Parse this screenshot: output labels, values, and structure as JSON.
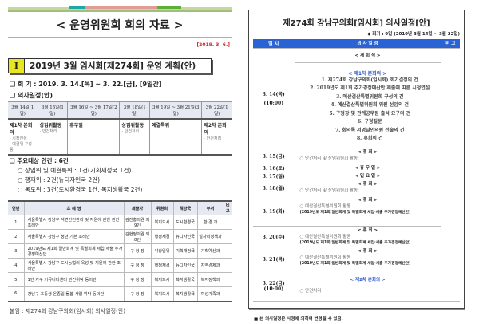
{
  "left": {
    "title": "< 운영위원회 회의 자료 >",
    "date": "[2019. 3. 6.]",
    "section": {
      "num": "I",
      "title": "2019년 3월 임시회[제274회] 운영 계획(안)"
    },
    "session": "❑ 회  기 : 2019. 3. 14.[목] ~ 3. 22.[금], [9일간]",
    "schedule_heading": "❑ 의사일정(안)",
    "schedule": {
      "headers": [
        "3월 14일(1일)",
        "3월 15일(1일)",
        "3월 16일 ~ 3월 17일(2일)",
        "3월 18일(1일)",
        "3월 19일 ~ 3월 21일(3일)",
        "3월 22일(1일)"
      ],
      "events": [
        {
          "title": "제1차 본회의",
          "notes": [
            "- 시정연설",
            "- 예결위 구성 등"
          ]
        },
        {
          "title": "상임위활동",
          "notes": [
            "- 안건처리"
          ]
        },
        {
          "title": "휴무일",
          "notes": []
        },
        {
          "title": "상임위활동",
          "notes": [
            "- 안건처리"
          ]
        },
        {
          "title": "예결특위",
          "notes": []
        },
        {
          "title": "제2차 본회의",
          "notes": [
            "- 안건처리"
          ]
        }
      ]
    },
    "agenda": {
      "main": "❑ 주요대상 안건 : 6건",
      "items": [
        "○ 상임위 및 예결특위 : 1건(기획재정국 1건)",
        "○ 행재위 : 2건(뉴디자인국 2건)",
        "○ 복도위 : 3건(도시환경국 1건, 복지생활국 2건)"
      ]
    },
    "bills": {
      "headers": [
        "연번",
        "조 례 명",
        "제출자",
        "위원회",
        "해당국",
        "부서",
        "비고"
      ],
      "rows": [
        [
          "1",
          "서울특별시 강남구 석면안전관리 및 지원에 관한 관한 조례안",
          "김진홍의원 외 9인",
          "복지도시",
          "도시환경국",
          "환 경 과",
          ""
        ],
        [
          "2",
          "서울특별시 강남구 청년 기본 조례안",
          "김현정의원 외 8인",
          "행정재경",
          "뉴디자인국",
          "일자리정책과",
          ""
        ],
        [
          "3",
          "2019년도 제1회 일반회계 및 특별회계 세입·세출 추가경정예산안",
          "구 청 장",
          "각상임위",
          "기획재정국",
          "기획예산과",
          ""
        ],
        [
          "4",
          "서울특별시 강남구 도시농업의 육성 및 지원에 관한 조례안",
          "구 청 장",
          "행정재경",
          "뉴디자인국",
          "지역경제과",
          ""
        ],
        [
          "5",
          "1인 가구 커뮤니티센터 민간위탁 동의안",
          "구 청 장",
          "복지도시",
          "복지생활국",
          "복지정책과",
          ""
        ],
        [
          "6",
          "강남구 초등생 온종일 돌봄 사업 위탁 동의안",
          "구 청 장",
          "복지도시",
          "복지생활국",
          "여성가족과",
          ""
        ]
      ]
    },
    "footer": "붙임 : 제274회 강남구의회(임시회) 의사일정(안)"
  },
  "right": {
    "title": "제274회 강남구의회[임시회] 의사일정[안]",
    "period": "◆ 회기 : 9일 (2019년 3월 14일 ~ 3월 22일)",
    "headers": [
      "일  시",
      "의  사  일  정",
      "비  고"
    ],
    "opening": "< 개    회    식 >",
    "day1": {
      "date": "3. 14(목)",
      "time": "(10:00)",
      "title": "< 제1차 본회의 >",
      "items": [
        "1. 제274회 강남구의회(임시회) 회기결정의 건",
        "2. 2019년도 제1회 추가경정예산안 제출에 따른 시정연설",
        "3. 예산결산특별위원회 구성의 건",
        "4. 예산결산특별위원회 위원 선임의 건",
        "5. 구청장 및 관계공무원 출석 요구의 건",
        "6. 구정질문",
        "7. 회의록 서명날인의원 선출의 건",
        "8. 휴회의 건"
      ]
    },
    "recess": "< 휴          회 >",
    "d15": {
      "date": "3. 15(금)",
      "item": "○ 안건처리 및 상임위원회 활동"
    },
    "d16": {
      "date": "3. 16(토)",
      "label": "< 휴    무    일 >"
    },
    "d17": {
      "date": "3. 17(일)",
      "label": "< 일    요    일 >"
    },
    "d18": {
      "date": "3. 18(월)",
      "item": "○ 안건처리 및 상임위원회 활동"
    },
    "d19": {
      "date": "3. 19(화)"
    },
    "d20": {
      "date": "3. 20(수)"
    },
    "d21": {
      "date": "3. 21(목)"
    },
    "budget_item": "○ 예산결산특별위원회 활동",
    "budget_detail": "(2019년도 제1회 일반회계 및 특별회계 세입·세출 추가경정예산안)",
    "d22": {
      "date": "3. 22(금)",
      "time": "(10:00)",
      "title": "< 제2차 본회의 >",
      "item": "○ 안건처리"
    },
    "note": "■ 본 의사일정은 사정에 의하여 변경될 수 있음."
  },
  "colors": {
    "accent_blue": "#2a63d6",
    "heading_yellow": "#e8e61e",
    "rule_green": "#9fbf7a"
  }
}
